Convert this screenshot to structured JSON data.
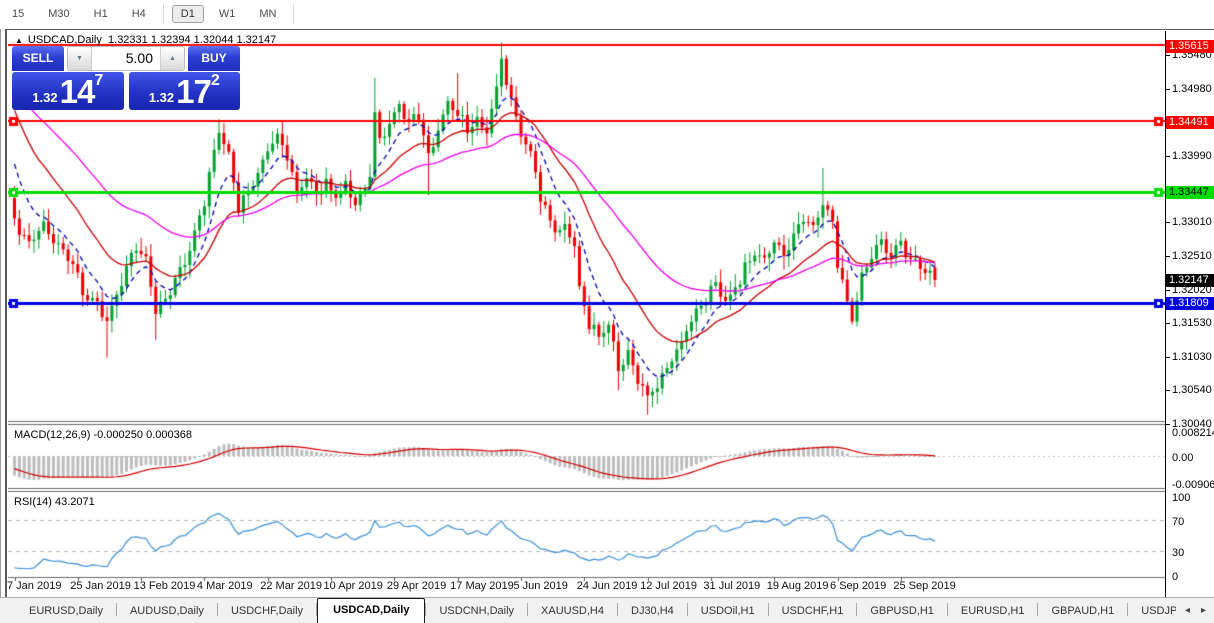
{
  "toolbar": {
    "timeframes": [
      {
        "label": "15",
        "active": false
      },
      {
        "label": "M30",
        "active": false
      },
      {
        "label": "H1",
        "active": false
      },
      {
        "label": "H4",
        "active": false
      },
      {
        "label": "D1",
        "active": true
      },
      {
        "label": "W1",
        "active": false
      },
      {
        "label": "MN",
        "active": false
      }
    ]
  },
  "chart_header": {
    "collapse_icon": "▲",
    "title": "USDCAD,Daily",
    "open": "1.32331",
    "high": "1.32394",
    "low": "1.32044",
    "close": "1.32147"
  },
  "trade_panel": {
    "sell_label": "SELL",
    "buy_label": "BUY",
    "volume": "5.00",
    "spinner_down_icon": "▼",
    "spinner_up_icon": "▲",
    "sell_price": {
      "prefix": "1.32",
      "big": "14",
      "sup": "7"
    },
    "buy_price": {
      "prefix": "1.32",
      "big": "17",
      "sup": "2"
    }
  },
  "price_axis": {
    "labels": [
      {
        "text": "1.35480",
        "price": 1.3548
      },
      {
        "text": "1.34980",
        "price": 1.3498
      },
      {
        "text": "1.33990",
        "price": 1.3399
      },
      {
        "text": "1.33010",
        "price": 1.3301
      },
      {
        "text": "1.32510",
        "price": 1.3251
      },
      {
        "text": "1.32020",
        "price": 1.3202
      },
      {
        "text": "1.31530",
        "price": 1.3153
      },
      {
        "text": "1.31030",
        "price": 1.3103
      },
      {
        "text": "1.30540",
        "price": 1.3054
      },
      {
        "text": "1.30040",
        "price": 1.3004
      }
    ],
    "badges": [
      {
        "text": "1.35615",
        "price": 1.35615,
        "bg": "#FF0000",
        "fg": "#FFFFFF"
      },
      {
        "text": "1.34491",
        "price": 1.34491,
        "bg": "#FF0000",
        "fg": "#FFFFFF"
      },
      {
        "text": "1.33447",
        "price": 1.33447,
        "bg": "#00DC00",
        "fg": "#000000"
      },
      {
        "text": "1.32147",
        "price": 1.32147,
        "bg": "#000000",
        "fg": "#FFFFFF"
      },
      {
        "text": "1.31809",
        "price": 1.31809,
        "bg": "#0000E0",
        "fg": "#FFFFFF"
      }
    ]
  },
  "indicators": {
    "macd_label": "MACD(12,26,9) -0.000250 0.000368",
    "rsi_label": "RSI(14) 43.2071",
    "macd_axis": [
      "0.008214",
      "0.00",
      "-0.009066"
    ],
    "rsi_axis": [
      "100",
      "70",
      "30",
      "0"
    ]
  },
  "tabs": {
    "items": [
      {
        "label": "EURUSD,Daily",
        "active": false
      },
      {
        "label": "AUDUSD,Daily",
        "active": false
      },
      {
        "label": "USDCHF,Daily",
        "active": false
      },
      {
        "label": "USDCAD,Daily",
        "active": true
      },
      {
        "label": "USDCNH,Daily",
        "active": false
      },
      {
        "label": "XAUUSD,H4",
        "active": false
      },
      {
        "label": "DJ30,H4",
        "active": false
      },
      {
        "label": "USDOil,H1",
        "active": false
      },
      {
        "label": "USDCHF,H1",
        "active": false
      },
      {
        "label": "GBPUSD,H1",
        "active": false
      },
      {
        "label": "EURUSD,H1",
        "active": false
      },
      {
        "label": "GBPAUD,H1",
        "active": false
      },
      {
        "label": "USDJP",
        "active": false
      }
    ],
    "scroll_left": "◂",
    "scroll_right": "▸"
  },
  "chart_data": {
    "type": "candlestick",
    "symbol": "USDCAD",
    "timeframe": "Daily",
    "bars": 190,
    "ylim": [
      1.3004,
      1.35615
    ],
    "x_ticks": [
      "7 Jan 2019",
      "25 Jan 2019",
      "13 Feb 2019",
      "4 Mar 2019",
      "22 Mar 2019",
      "10 Apr 2019",
      "29 Apr 2019",
      "17 May 2019",
      "5 Jun 2019",
      "24 Jun 2019",
      "12 Jul 2019",
      "31 Jul 2019",
      "19 Aug 2019",
      "6 Sep 2019",
      "25 Sep 2019"
    ],
    "current_bar_ohlc": {
      "open": 1.32331,
      "high": 1.32394,
      "low": 1.32044,
      "close": 1.32147
    },
    "horizontal_lines": [
      {
        "price": 1.35615,
        "color": "#FF0000",
        "width": 2,
        "handles": false
      },
      {
        "price": 1.34491,
        "color": "#FF0000",
        "width": 2,
        "handles": true
      },
      {
        "price": 1.33447,
        "color": "#00DC00",
        "width": 3,
        "handles": true
      },
      {
        "price": 1.31809,
        "color": "#0000E0",
        "width": 3,
        "handles": true
      }
    ],
    "close_waypoints": [
      [
        0,
        1.33
      ],
      [
        3,
        1.3272
      ],
      [
        6,
        1.3293
      ],
      [
        9,
        1.3268
      ],
      [
        12,
        1.3242
      ],
      [
        14,
        1.3192
      ],
      [
        17,
        1.3176
      ],
      [
        19,
        1.3158
      ],
      [
        21,
        1.3192
      ],
      [
        23,
        1.323
      ],
      [
        25,
        1.3268
      ],
      [
        27,
        1.3242
      ],
      [
        29,
        1.3168
      ],
      [
        31,
        1.3182
      ],
      [
        33,
        1.3214
      ],
      [
        35,
        1.324
      ],
      [
        37,
        1.3285
      ],
      [
        39,
        1.3332
      ],
      [
        41,
        1.34
      ],
      [
        42,
        1.3438
      ],
      [
        44,
        1.3396
      ],
      [
        46,
        1.3322
      ],
      [
        48,
        1.3348
      ],
      [
        50,
        1.3374
      ],
      [
        52,
        1.341
      ],
      [
        54,
        1.3428
      ],
      [
        56,
        1.3398
      ],
      [
        58,
        1.3342
      ],
      [
        60,
        1.3366
      ],
      [
        62,
        1.3342
      ],
      [
        64,
        1.3358
      ],
      [
        66,
        1.3338
      ],
      [
        68,
        1.3354
      ],
      [
        70,
        1.3332
      ],
      [
        72,
        1.3346
      ],
      [
        73,
        1.3368
      ],
      [
        74,
        1.3462
      ],
      [
        75,
        1.3422
      ],
      [
        77,
        1.3444
      ],
      [
        79,
        1.347
      ],
      [
        81,
        1.3446
      ],
      [
        83,
        1.3456
      ],
      [
        85,
        1.3396
      ],
      [
        87,
        1.3436
      ],
      [
        89,
        1.3476
      ],
      [
        91,
        1.346
      ],
      [
        93,
        1.3436
      ],
      [
        95,
        1.3446
      ],
      [
        97,
        1.3432
      ],
      [
        99,
        1.3494
      ],
      [
        100,
        1.3548
      ],
      [
        101,
        1.351
      ],
      [
        103,
        1.3452
      ],
      [
        105,
        1.3416
      ],
      [
        107,
        1.3374
      ],
      [
        108,
        1.3332
      ],
      [
        110,
        1.3306
      ],
      [
        112,
        1.3282
      ],
      [
        113,
        1.3298
      ],
      [
        115,
        1.3262
      ],
      [
        116,
        1.3202
      ],
      [
        118,
        1.3152
      ],
      [
        120,
        1.3128
      ],
      [
        122,
        1.3152
      ],
      [
        124,
        1.3088
      ],
      [
        126,
        1.3106
      ],
      [
        128,
        1.3068
      ],
      [
        130,
        1.3042
      ],
      [
        132,
        1.3062
      ],
      [
        134,
        1.3086
      ],
      [
        136,
        1.3106
      ],
      [
        138,
        1.3142
      ],
      [
        140,
        1.3166
      ],
      [
        142,
        1.3186
      ],
      [
        144,
        1.3212
      ],
      [
        146,
        1.3182
      ],
      [
        148,
        1.3202
      ],
      [
        150,
        1.3232
      ],
      [
        152,
        1.3256
      ],
      [
        154,
        1.3242
      ],
      [
        156,
        1.3276
      ],
      [
        158,
        1.3252
      ],
      [
        160,
        1.3282
      ],
      [
        162,
        1.3306
      ],
      [
        164,
        1.3292
      ],
      [
        166,
        1.3332
      ],
      [
        168,
        1.3302
      ],
      [
        169,
        1.3242
      ],
      [
        171,
        1.3182
      ],
      [
        172,
        1.3156
      ],
      [
        174,
        1.3216
      ],
      [
        176,
        1.3256
      ],
      [
        178,
        1.3272
      ],
      [
        180,
        1.3254
      ],
      [
        182,
        1.3268
      ],
      [
        184,
        1.3248
      ],
      [
        186,
        1.3232
      ],
      [
        188,
        1.3222
      ],
      [
        189,
        1.32147
      ]
    ],
    "wick_extremes": [
      [
        19,
        "low",
        1.31
      ],
      [
        29,
        "low",
        1.3126
      ],
      [
        42,
        "high",
        1.3452
      ],
      [
        74,
        "high",
        1.3513
      ],
      [
        85,
        "low",
        1.334
      ],
      [
        91,
        "high",
        1.352
      ],
      [
        100,
        "high",
        1.3565
      ],
      [
        124,
        "low",
        1.3052
      ],
      [
        130,
        "low",
        1.3016
      ],
      [
        166,
        "high",
        1.338
      ],
      [
        189,
        "low",
        1.3196
      ]
    ],
    "prehistory_waypoints": [
      [
        -60,
        1.325
      ],
      [
        -50,
        1.348
      ],
      [
        -38,
        1.364
      ],
      [
        -25,
        1.366
      ],
      [
        -15,
        1.358
      ],
      [
        -8,
        1.35
      ],
      [
        -3,
        1.338
      ],
      [
        -1,
        1.3332
      ]
    ],
    "moving_averages": [
      {
        "period": 8,
        "color": "#0000B8",
        "style": "dashed"
      },
      {
        "period": 20,
        "color": "#C80000",
        "style": "solid"
      },
      {
        "period": 45,
        "color": "#EE00EE",
        "style": "solid"
      }
    ],
    "candle_up_color": "#00A32E",
    "candle_down_color": "#EE0000",
    "macd": {
      "fast": 12,
      "slow": 26,
      "signal": 9,
      "current_macd": -0.00025,
      "current_signal": 0.000368,
      "hist_color": "#BDBDBD",
      "signal_color": "#D40000",
      "ylim": [
        -0.009066,
        0.008214
      ]
    },
    "rsi": {
      "period": 14,
      "current": 43.2071,
      "levels": [
        70,
        30
      ],
      "color": "#3A8FD9",
      "ylim": [
        0,
        100
      ]
    }
  }
}
